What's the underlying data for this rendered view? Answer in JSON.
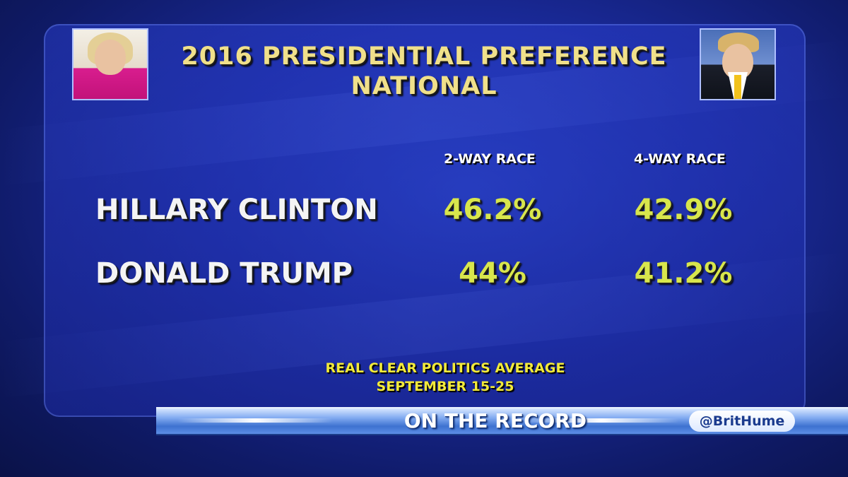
{
  "chart_data": {
    "type": "table",
    "title": "2016 PRESIDENTIAL PREFERENCE",
    "subtitle": "NATIONAL",
    "columns": [
      "2-WAY RACE",
      "4-WAY RACE"
    ],
    "rows": [
      {
        "label": "HILLARY CLINTON",
        "values": [
          "46.2%",
          "42.9%"
        ]
      },
      {
        "label": "DONALD TRUMP",
        "values": [
          "44%",
          "41.2%"
        ]
      }
    ],
    "source_line1": "REAL CLEAR POLITICS AVERAGE",
    "source_line2": "SEPTEMBER 15-25"
  },
  "ticker": {
    "title": "ON THE RECORD",
    "handle": "@BritHume"
  },
  "colors": {
    "title": "#f0e08a",
    "value": "#d8e64c",
    "source": "#f2ea3a",
    "background": "#1a2a9a"
  }
}
